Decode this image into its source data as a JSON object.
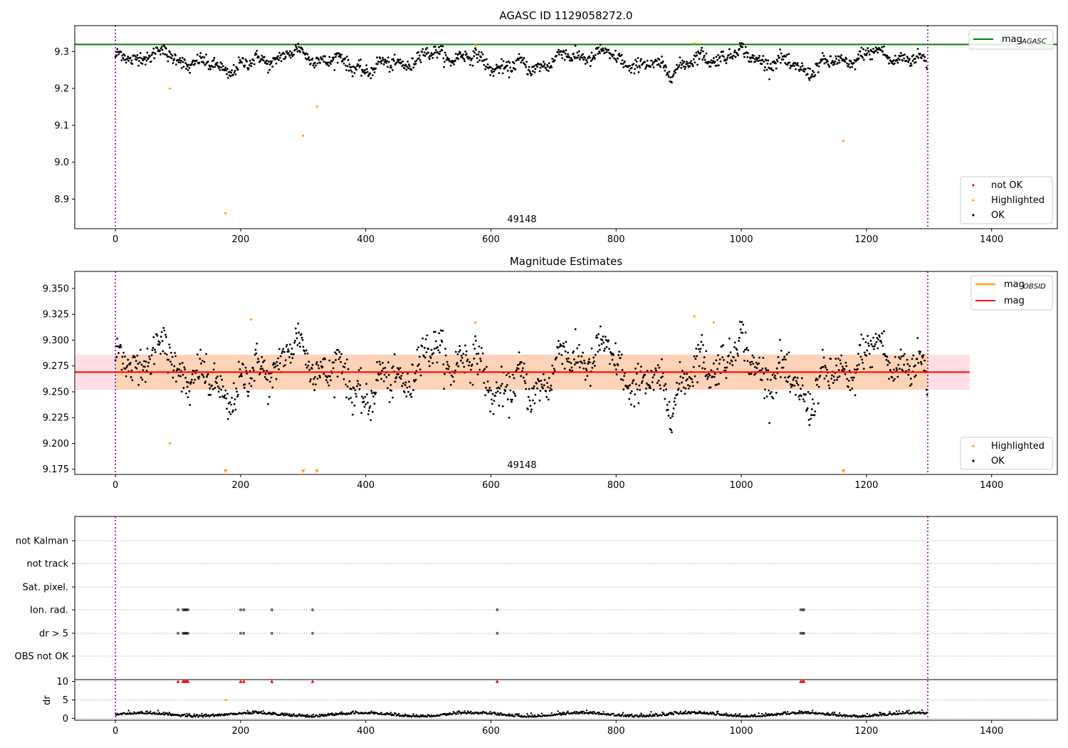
{
  "chart_data": [
    {
      "type": "scatter",
      "title": "AGASC ID 1129058272.0",
      "xlim": [
        -65,
        1505
      ],
      "ylim": [
        8.82,
        9.37
      ],
      "xticks": [
        0,
        200,
        400,
        600,
        800,
        1000,
        1200,
        1400
      ],
      "yticks": [
        8.9,
        9.0,
        9.1,
        9.2,
        9.3
      ],
      "ytick_labels": [
        "8.9",
        "9.0",
        "9.1",
        "9.2",
        "9.3"
      ],
      "vlines": [
        0,
        1298
      ],
      "hline": {
        "name": "mag_AGASC",
        "value": 9.319,
        "color": "#008000"
      },
      "annotation": {
        "text": "49148",
        "x": 648
      },
      "legend_top": [
        {
          "label": "mag",
          "sub": "AGASC",
          "color": "#008000"
        }
      ],
      "legend_bottom": [
        {
          "label": "not OK",
          "color": "#ff0000"
        },
        {
          "label": "Highlighted",
          "color": "#ffa500"
        },
        {
          "label": "OK",
          "color": "#000000"
        }
      ],
      "highlighted": [
        [
          87,
          9.2
        ],
        [
          176,
          8.862
        ],
        [
          300,
          9.072
        ],
        [
          322,
          9.151
        ],
        [
          576,
          9.317
        ],
        [
          925,
          9.322
        ],
        [
          1163,
          9.058
        ]
      ]
    },
    {
      "type": "scatter",
      "title": "Magnitude Estimates",
      "xlim": [
        -65,
        1505
      ],
      "ylim": [
        9.17,
        9.3665
      ],
      "xticks": [
        0,
        200,
        400,
        600,
        800,
        1000,
        1200,
        1400
      ],
      "yticks": [
        9.175,
        9.2,
        9.225,
        9.25,
        9.275,
        9.3,
        9.325,
        9.35
      ],
      "ytick_labels": [
        "9.175",
        "9.200",
        "9.225",
        "9.250",
        "9.275",
        "9.300",
        "9.325",
        "9.350"
      ],
      "vlines": [
        0,
        1298
      ],
      "mag": {
        "value": 9.269,
        "lo": 9.252,
        "hi": 9.286,
        "x_range": [
          -65,
          1365
        ],
        "color": "#ff0000"
      },
      "mag_obsid": {
        "value": 9.269,
        "color": "#ffa500"
      },
      "annotation": {
        "text": "49148",
        "x": 648
      },
      "legend_top": [
        {
          "label": "mag",
          "sub": "OBSID",
          "color": "#ffa500"
        },
        {
          "label": "mag",
          "sub": "",
          "color": "#ff0000"
        }
      ],
      "legend_bottom": [
        {
          "label": "Highlighted",
          "color": "#ffa500"
        },
        {
          "label": "OK",
          "color": "#000000"
        }
      ],
      "highlighted": [
        [
          87,
          9.2
        ],
        [
          217,
          9.32
        ],
        [
          575,
          9.317
        ],
        [
          925,
          9.323
        ],
        [
          956,
          9.317
        ]
      ],
      "below_range": [
        176,
        300,
        322,
        1163
      ]
    },
    {
      "type": "scatter",
      "xlim": [
        -65,
        1505
      ],
      "xticks": [
        0,
        200,
        400,
        600,
        800,
        1000,
        1200,
        1400
      ],
      "vlines": [
        0,
        1298
      ],
      "categories": [
        "not Kalman",
        "not track",
        "Sat. pixel.",
        "Ion. rad.",
        "dr > 5",
        "OBS not OK"
      ],
      "flag_times": [
        100,
        108,
        110,
        112,
        114,
        116,
        200,
        205,
        250,
        315,
        610,
        1095,
        1098,
        1100
      ],
      "flag_rows": [
        "Ion. rad.",
        "dr > 5"
      ],
      "dr": {
        "ylabel": "dr",
        "ylim": [
          -0.5,
          10.5
        ],
        "yticks": [
          0,
          5,
          10
        ],
        "ytick_labels": [
          "0",
          "5",
          "10"
        ],
        "clipped_at": 10,
        "highlighted": [
          [
            176,
            5
          ]
        ]
      }
    }
  ]
}
